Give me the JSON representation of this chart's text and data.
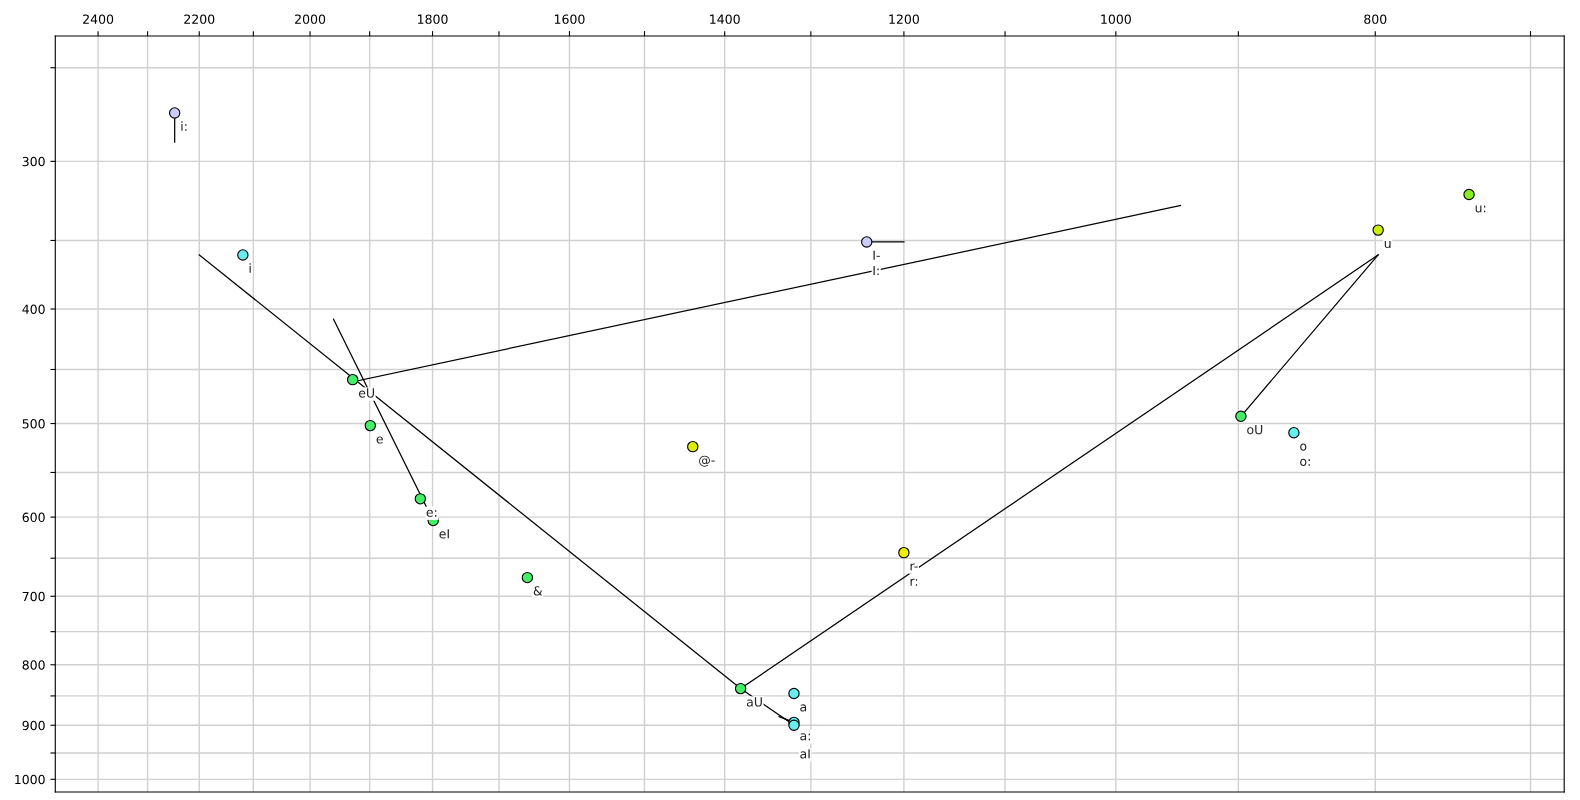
{
  "chart_data": {
    "type": "scatter",
    "log": "xy",
    "grid": true,
    "xlim": [
      2490,
      680
    ],
    "ylim": [
      1025,
      235
    ],
    "xticks": [
      2400,
      {
        "value": 2300,
        "label": null
      },
      2200,
      {
        "value": 2100,
        "label": null
      },
      2000,
      {
        "value": 1900,
        "label": null
      },
      1800,
      {
        "value": 1700,
        "label": null
      },
      1600,
      {
        "value": 1500,
        "label": null
      },
      1400,
      {
        "value": 1300,
        "label": null
      },
      1200,
      {
        "value": 1100,
        "label": null
      },
      1000,
      {
        "value": 900,
        "label": null
      },
      800,
      {
        "value": 700,
        "label": null
      }
    ],
    "yticks": [
      {
        "value": 250,
        "label": null
      },
      300,
      {
        "value": 350,
        "label": null
      },
      400,
      {
        "value": 450,
        "label": null
      },
      500,
      {
        "value": 550,
        "label": null
      },
      600,
      {
        "value": 650,
        "label": null
      },
      700,
      {
        "value": 750,
        "label": null
      },
      800,
      {
        "value": 850,
        "label": null
      },
      900,
      {
        "value": 950,
        "label": null
      },
      1000
    ],
    "series": [
      {
        "type": "line",
        "color": "#000000",
        "x": [
          2200,
          1381,
          1319
        ],
        "values": [
          360,
          838,
          900
        ]
      },
      {
        "type": "line",
        "color": "#000000",
        "x": [
          1381,
          798
        ],
        "values": [
          838,
          360
        ]
      },
      {
        "type": "line",
        "color": "#000000",
        "x": [
          898,
          798
        ],
        "values": [
          493,
          360
        ]
      },
      {
        "type": "line",
        "color": "#000000",
        "x": [
          1920,
          946
        ],
        "values": [
          460,
          327
        ]
      },
      {
        "type": "line",
        "color": "#000000",
        "x": [
          1960,
          1799
        ],
        "values": [
          408,
          604
        ]
      },
      {
        "type": "line",
        "color": "#000000",
        "x": [
          2247,
          2247
        ],
        "values": [
          273,
          289
        ]
      },
      {
        "type": "line",
        "color": "#000000",
        "x": [
          1239,
          1200
        ],
        "values": [
          351,
          351
        ]
      },
      {
        "type": "line",
        "color": "#000000",
        "x": [
          1336,
          1319
        ],
        "values": [
          885,
          895
        ]
      },
      {
        "marker": "circle",
        "x": [
          2247,
          2119,
          1928,
          1899,
          1819,
          1799,
          1659,
          1439,
          1239,
          1381,
          1319,
          1319,
          1319,
          1200,
          798,
          738,
          898,
          858
        ],
        "values": [
          273,
          360,
          459,
          502,
          579,
          604,
          675,
          523,
          351,
          838,
          846,
          895,
          900,
          643,
          343,
          320,
          493,
          509
        ],
        "colors": [
          "#ccccff",
          "#66eeee",
          "#44ee66",
          "#44ee66",
          "#44ee66",
          "#44ee66",
          "#44ee66",
          "#ddee00",
          "#ccccff",
          "#44ee66",
          "#66eeee",
          "#66eeee",
          "#66eeee",
          "#eeee00",
          "#ccee00",
          "#88ee22",
          "#44ee66",
          "#66eeee"
        ]
      }
    ],
    "annotations": [
      {
        "text": "i:",
        "x": 2247,
        "y": 273
      },
      {
        "text": "i",
        "x": 2119,
        "y": 360
      },
      {
        "text": "eU",
        "x": 1928,
        "y": 459
      },
      {
        "text": "e",
        "x": 1899,
        "y": 502
      },
      {
        "text": "e:",
        "x": 1819,
        "y": 579
      },
      {
        "text": "eI",
        "x": 1799,
        "y": 604
      },
      {
        "text": "&",
        "x": 1659,
        "y": 675
      },
      {
        "text": "@-",
        "x": 1439,
        "y": 523
      },
      {
        "text": "I-",
        "x": 1239,
        "y": 351
      },
      {
        "text": "I:",
        "x": 1239,
        "y": 351
      },
      {
        "text": "aU",
        "x": 1381,
        "y": 838
      },
      {
        "text": "a",
        "x": 1319,
        "y": 846
      },
      {
        "text": "a:",
        "x": 1319,
        "y": 895
      },
      {
        "text": "aI",
        "x": 1319,
        "y": 900
      },
      {
        "text": "r-",
        "x": 1200,
        "y": 643
      },
      {
        "text": "r:",
        "x": 1200,
        "y": 643
      },
      {
        "text": "u",
        "x": 798,
        "y": 343
      },
      {
        "text": "u:",
        "x": 738,
        "y": 320
      },
      {
        "text": "oU",
        "x": 898,
        "y": 493
      },
      {
        "text": "o",
        "x": 858,
        "y": 509
      },
      {
        "text": "o:",
        "x": 858,
        "y": 509
      }
    ]
  }
}
